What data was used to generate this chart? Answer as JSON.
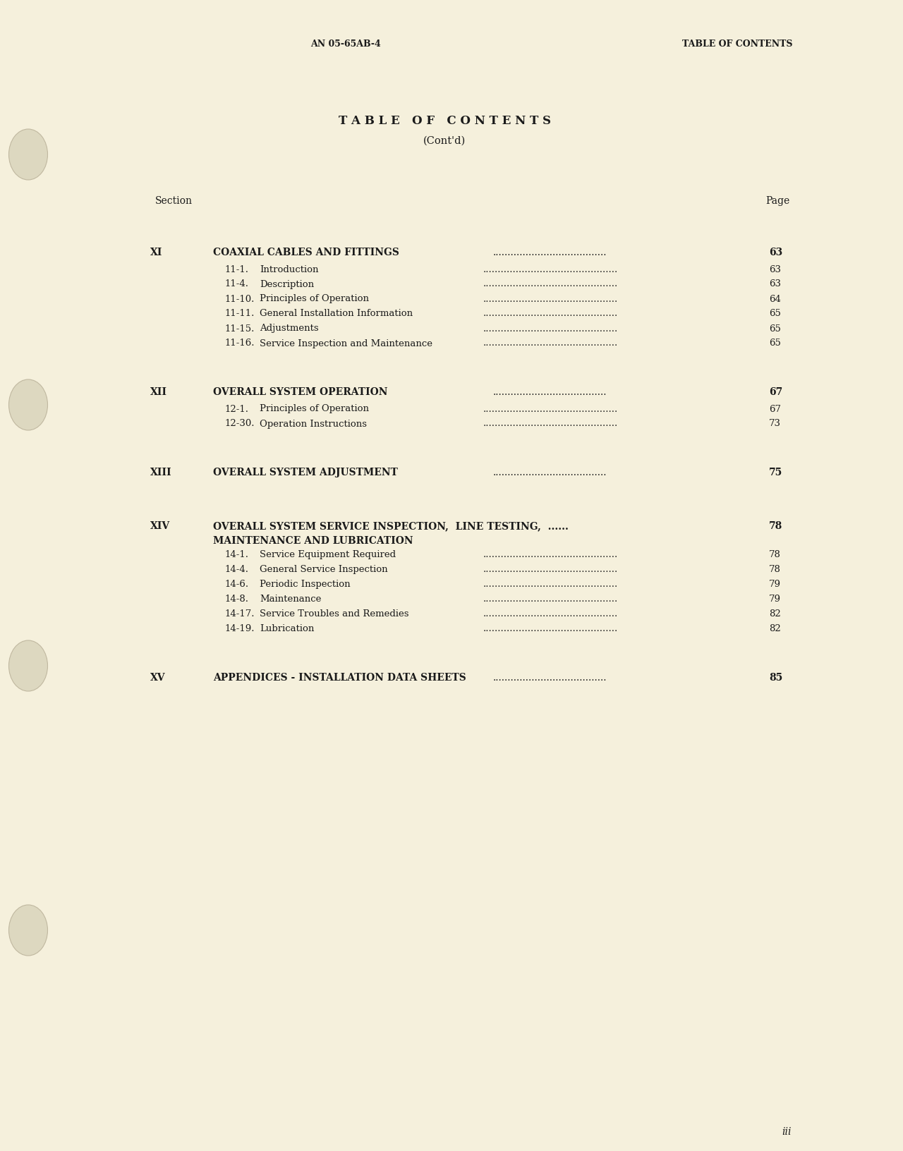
{
  "bg_color": "#f5f0dc",
  "text_color": "#1a1a1a",
  "header_left": "AN 05-65AB-4",
  "header_right": "TABLE OF CONTENTS",
  "title_line1": "T A B L E   O F   C O N T E N T S",
  "title_line2": "(Cont'd)",
  "section_label": "Section",
  "page_label": "Page",
  "footer_page": "iii",
  "sections": [
    {
      "roman": "XI",
      "title": "COAXIAL CABLES AND FITTINGS",
      "title_line2": null,
      "page": "63",
      "subsections": [
        {
          "num": "11-1.",
          "title": "Introduction",
          "page": "63"
        },
        {
          "num": "11-4.",
          "title": "Description",
          "page": "63"
        },
        {
          "num": "11-10.",
          "title": "Principles of Operation",
          "page": "64"
        },
        {
          "num": "11-11.",
          "title": "General Installation Information",
          "page": "65"
        },
        {
          "num": "11-15.",
          "title": "Adjustments",
          "page": "65"
        },
        {
          "num": "11-16.",
          "title": "Service Inspection and Maintenance",
          "page": "65"
        }
      ]
    },
    {
      "roman": "XII",
      "title": "OVERALL SYSTEM OPERATION",
      "title_line2": null,
      "page": "67",
      "subsections": [
        {
          "num": "12-1.",
          "title": "Principles of Operation",
          "page": "67"
        },
        {
          "num": "12-30.",
          "title": "Operation Instructions",
          "page": "73"
        }
      ]
    },
    {
      "roman": "XIII",
      "title": "OVERALL SYSTEM ADJUSTMENT",
      "title_line2": null,
      "page": "75",
      "subsections": []
    },
    {
      "roman": "XIV",
      "title": "OVERALL SYSTEM SERVICE INSPECTION,  LINE TESTING,  ......",
      "title_line2": "MAINTENANCE AND LUBRICATION",
      "page": "78",
      "subsections": [
        {
          "num": "14-1.",
          "title": "Service Equipment Required",
          "page": "78"
        },
        {
          "num": "14-4.",
          "title": "General Service Inspection",
          "page": "78"
        },
        {
          "num": "14-6.",
          "title": "Periodic Inspection",
          "page": "79"
        },
        {
          "num": "14-8.",
          "title": "Maintenance",
          "page": "79"
        },
        {
          "num": "14-17.",
          "title": "Service Troubles and Remedies",
          "page": "82"
        },
        {
          "num": "14-19.",
          "title": "Lubrication",
          "page": "82"
        }
      ]
    },
    {
      "roman": "XV",
      "title": "APPENDICES - INSTALLATION DATA SHEETS",
      "title_line2": null,
      "page": "85",
      "subsections": []
    }
  ]
}
